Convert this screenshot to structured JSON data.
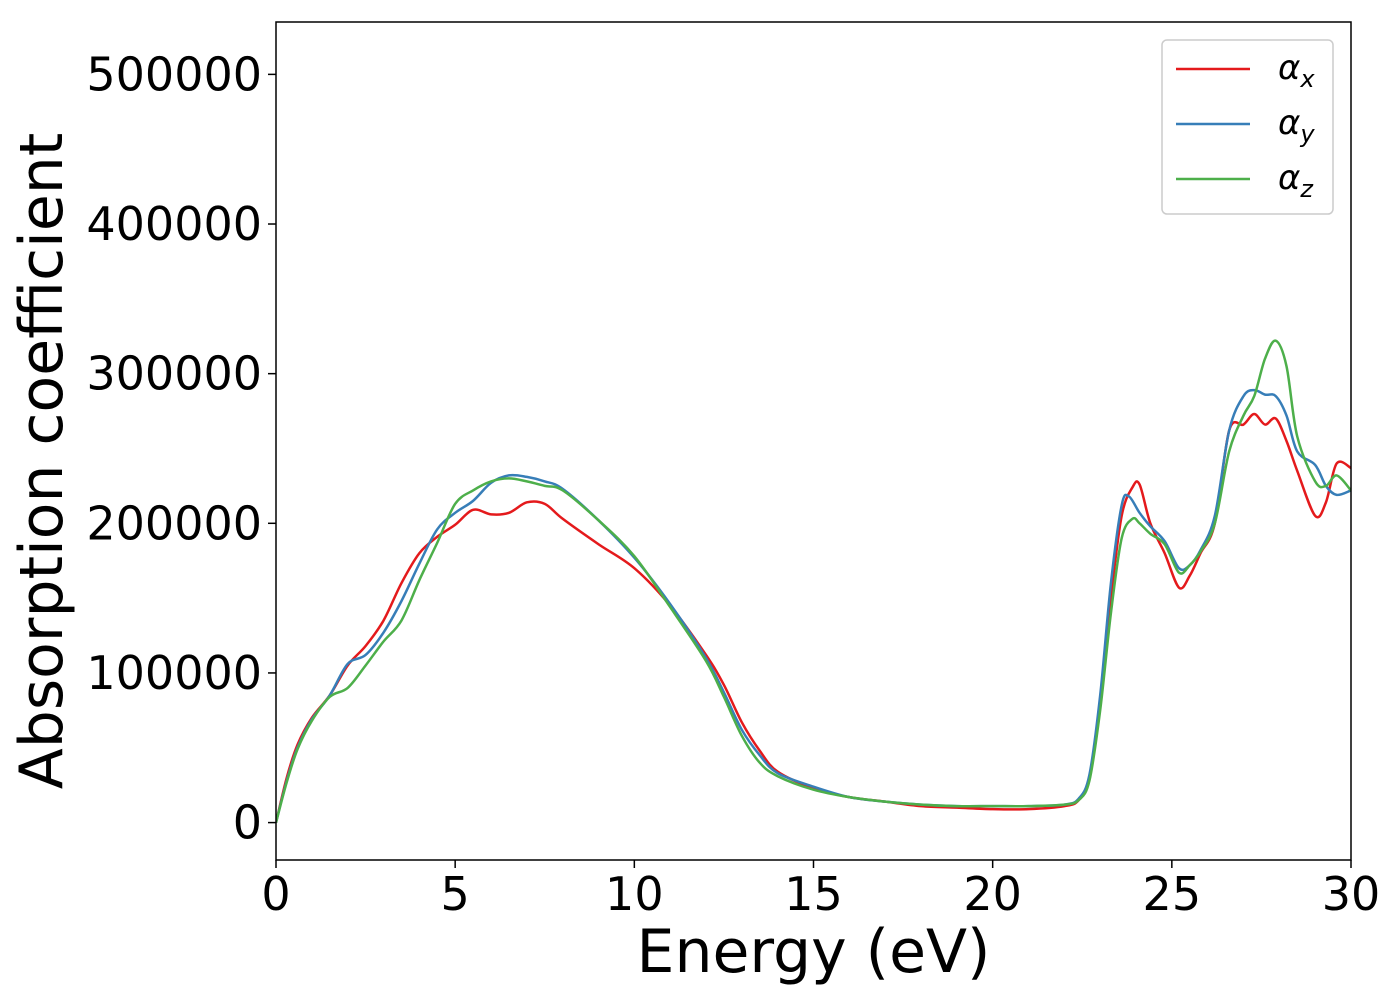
{
  "chart_data": {
    "type": "line",
    "title": "",
    "xlabel": "Energy (eV)",
    "ylabel": "Absorption coefficient",
    "xlim": [
      0,
      30
    ],
    "ylim": [
      -25000,
      535000
    ],
    "xticks": [
      0,
      5,
      10,
      15,
      20,
      25,
      30
    ],
    "yticks": [
      0,
      100000,
      200000,
      300000,
      400000,
      500000
    ],
    "xtick_labels": [
      "0",
      "5",
      "10",
      "15",
      "20",
      "25",
      "30"
    ],
    "ytick_labels": [
      "0",
      "100000",
      "200000",
      "300000",
      "400000",
      "500000"
    ],
    "grid": false,
    "legend_position": "top-right",
    "series": [
      {
        "name": "α_x",
        "legend_base": "α",
        "legend_sub": "x",
        "color": "#e41a1c",
        "x": [
          0,
          0.3,
          0.6,
          1.0,
          1.5,
          2.0,
          2.5,
          3.0,
          3.5,
          4.0,
          4.5,
          5.0,
          5.5,
          6.0,
          6.5,
          7.0,
          7.5,
          8.0,
          9.0,
          10.0,
          11.0,
          12.0,
          12.5,
          13.0,
          13.5,
          14.0,
          15.0,
          16.0,
          17.0,
          18.0,
          19.0,
          20.0,
          21.0,
          22.0,
          22.4,
          22.7,
          23.0,
          23.3,
          23.6,
          23.9,
          24.1,
          24.4,
          24.8,
          25.2,
          25.5,
          25.8,
          26.2,
          26.6,
          27.0,
          27.3,
          27.6,
          27.9,
          28.2,
          28.5,
          29.0,
          29.3,
          29.6,
          30.0
        ],
        "y": [
          0,
          30000,
          52000,
          70000,
          85000,
          105000,
          118000,
          135000,
          160000,
          180000,
          191000,
          199000,
          209000,
          206000,
          207000,
          214000,
          213000,
          203000,
          186000,
          170000,
          145000,
          112000,
          92000,
          67000,
          48000,
          34000,
          23000,
          17000,
          14000,
          11000,
          10000,
          9000,
          9000,
          11000,
          15000,
          30000,
          80000,
          150000,
          205000,
          224000,
          226000,
          200000,
          180000,
          157000,
          165000,
          180000,
          200000,
          262000,
          266000,
          273000,
          266000,
          270000,
          255000,
          235000,
          205000,
          214000,
          240000,
          237000
        ]
      },
      {
        "name": "α_y",
        "legend_base": "α",
        "legend_sub": "y",
        "color": "#377eb8",
        "x": [
          0,
          0.3,
          0.6,
          1.0,
          1.5,
          2.0,
          2.5,
          3.0,
          3.5,
          4.0,
          4.5,
          5.0,
          5.5,
          6.0,
          6.5,
          7.0,
          7.5,
          8.0,
          9.0,
          10.0,
          11.0,
          12.0,
          12.5,
          13.0,
          13.5,
          14.0,
          15.0,
          16.0,
          17.0,
          18.0,
          19.0,
          20.0,
          21.0,
          22.0,
          22.4,
          22.7,
          23.0,
          23.3,
          23.6,
          23.8,
          24.1,
          24.4,
          24.8,
          25.2,
          25.5,
          25.8,
          26.2,
          26.6,
          27.0,
          27.3,
          27.6,
          27.9,
          28.2,
          28.5,
          29.0,
          29.3,
          29.6,
          30.0
        ],
        "y": [
          0,
          28000,
          50000,
          69000,
          85000,
          106000,
          112000,
          127000,
          148000,
          173000,
          196000,
          207000,
          215000,
          227000,
          232000,
          231000,
          228000,
          223000,
          202000,
          177000,
          146000,
          110000,
          87000,
          62000,
          45000,
          33000,
          24000,
          17000,
          14000,
          12000,
          11000,
          11000,
          11000,
          12000,
          16000,
          32000,
          85000,
          160000,
          212000,
          218000,
          207000,
          198000,
          188000,
          170000,
          172000,
          182000,
          205000,
          262000,
          285000,
          289000,
          286000,
          285000,
          272000,
          248000,
          239000,
          225000,
          219000,
          222000
        ]
      },
      {
        "name": "α_z",
        "legend_base": "α",
        "legend_sub": "z",
        "color": "#4daf4a",
        "x": [
          0,
          0.3,
          0.6,
          1.0,
          1.5,
          2.0,
          2.5,
          3.0,
          3.5,
          4.0,
          4.5,
          5.0,
          5.5,
          6.0,
          6.5,
          7.0,
          7.5,
          8.0,
          9.0,
          10.0,
          11.0,
          12.0,
          12.5,
          13.0,
          13.5,
          14.0,
          15.0,
          16.0,
          17.0,
          18.0,
          19.0,
          20.0,
          21.0,
          22.0,
          22.4,
          22.7,
          23.0,
          23.3,
          23.6,
          23.9,
          24.1,
          24.4,
          24.8,
          25.2,
          25.5,
          25.8,
          26.2,
          26.6,
          27.0,
          27.3,
          27.6,
          27.9,
          28.2,
          28.5,
          29.0,
          29.3,
          29.6,
          30.0
        ],
        "y": [
          0,
          27000,
          49000,
          68000,
          84000,
          90000,
          105000,
          121000,
          135000,
          162000,
          187000,
          213000,
          222000,
          228000,
          230000,
          228000,
          225000,
          222000,
          202000,
          178000,
          144000,
          108000,
          84000,
          58000,
          40000,
          31000,
          22000,
          17000,
          14000,
          12000,
          11000,
          11000,
          11000,
          12000,
          15000,
          28000,
          75000,
          140000,
          190000,
          203000,
          200000,
          193000,
          186000,
          167000,
          172000,
          181000,
          200000,
          248000,
          272000,
          285000,
          310000,
          322000,
          305000,
          258000,
          228000,
          225000,
          232000,
          222000
        ]
      }
    ]
  }
}
